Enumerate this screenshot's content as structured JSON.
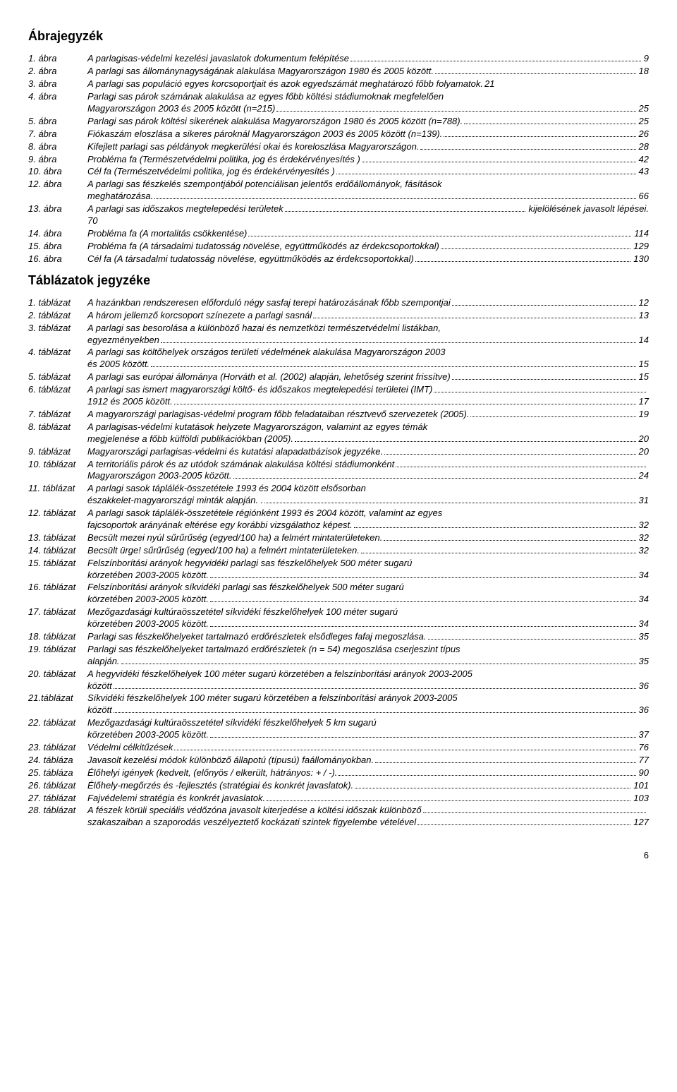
{
  "sections": [
    {
      "title": "Ábrajegyzék",
      "entries": [
        {
          "label": "1. ábra",
          "lines": [
            {
              "text": "A parlagisas-védelmi kezelési javaslatok dokumentum felépítése",
              "page": "9"
            }
          ]
        },
        {
          "label": "2. ábra",
          "lines": [
            {
              "text": "A parlagi sas állománynagyságának alakulása Magyarországon 1980 és 2005 között.",
              "page": "18"
            }
          ]
        },
        {
          "label": "3. ábra",
          "lines": [
            {
              "text": "A parlagi sas populáció egyes korcsoportjait és azok egyedszámát meghatározó főbb folyamatok.",
              "page": "21",
              "nodots": true
            }
          ]
        },
        {
          "label": "4. ábra",
          "lines": [
            {
              "text": "Parlagi sas párok számának alakulása az egyes főbb költési stádiumoknak megfelelően"
            },
            {
              "text": "Magyarországon 2003 és 2005 között (n=215)",
              "page": "25"
            }
          ]
        },
        {
          "label": "5. ábra",
          "lines": [
            {
              "text": "Parlagi sas párok költési sikerének alakulása Magyarországon 1980 és 2005 között (n=788).",
              "page": "25"
            }
          ]
        },
        {
          "label": "7. ábra",
          "lines": [
            {
              "text": "Fiókaszám eloszlása a sikeres pároknál Magyarországon 2003 és 2005 között (n=139).",
              "page": "26"
            }
          ]
        },
        {
          "label": "8. ábra",
          "lines": [
            {
              "text": "Kifejlett parlagi sas példányok megkerülési okai és koreloszlása Magyarországon.",
              "page": "28"
            }
          ]
        },
        {
          "label": "9. ábra",
          "lines": [
            {
              "text": "Probléma fa (Természetvédelmi politika, jog és érdekérvényesítés )",
              "page": "42"
            }
          ]
        },
        {
          "label": "10. ábra",
          "lines": [
            {
              "text": "Cél fa (Természetvédelmi politika, jog és érdekérvényesítés )",
              "page": "43"
            }
          ]
        },
        {
          "label": "12. ábra",
          "lines": [
            {
              "text": "A parlagi sas fészkelés szempontjából potenciálisan jelentős erdőállományok, fásítások"
            },
            {
              "text": "meghatározása.",
              "page": "66"
            }
          ]
        },
        {
          "label": "13. ábra",
          "lines": [
            {
              "text": "A parlagi sas időszakos megtelepedési területek",
              "page": "kijelölésének javasolt lépései."
            },
            {
              "text": "70",
              "nodots": true
            }
          ]
        },
        {
          "label": "14. ábra",
          "lines": [
            {
              "text": "Probléma fa (A mortalitás csökkentése)",
              "page": "114"
            }
          ]
        },
        {
          "label": "15. ábra",
          "lines": [
            {
              "text": "Probléma fa (A társadalmi tudatosság növelése, együttműködés az érdekcsoportokkal)",
              "page": "129"
            }
          ]
        },
        {
          "label": "16. ábra",
          "lines": [
            {
              "text": "Cél fa (A társadalmi tudatosság növelése, együttműködés az érdekcsoportokkal)",
              "page": "130"
            }
          ]
        }
      ]
    },
    {
      "title": "Táblázatok jegyzéke",
      "entries": [
        {
          "label": "1. táblázat",
          "lines": [
            {
              "text": "A hazánkban rendszeresen előforduló négy sasfaj terepi határozásának főbb szempontjai",
              "page": "12"
            }
          ]
        },
        {
          "label": "2. táblázat",
          "lines": [
            {
              "text": "A három jellemző korcsoport színezete a parlagi sasnál",
              "page": "13"
            }
          ]
        },
        {
          "label": "3. táblázat",
          "lines": [
            {
              "text": "A parlagi sas besorolása a különböző hazai és nemzetközi természetvédelmi listákban,"
            },
            {
              "text": "egyezményekben",
              "page": "14"
            }
          ]
        },
        {
          "label": "4. táblázat",
          "lines": [
            {
              "text": "A parlagi sas költőhelyek országos területi védelmének alakulása Magyarországon 2003"
            },
            {
              "text": "és 2005 között.",
              "page": "15"
            }
          ]
        },
        {
          "label": "5. táblázat",
          "lines": [
            {
              "text": "A parlagi sas európai állománya (Horváth et al. (2002) alapján, lehetőség szerint frissítve)",
              "page": "15"
            }
          ]
        },
        {
          "label": "6. táblázat",
          "lines": [
            {
              "text": "A parlagi sas ismert magyarországi költő- és időszakos megtelepedési területei (IMT)",
              "page": ""
            },
            {
              "text": "1912 és 2005 között.",
              "page": "17"
            }
          ]
        },
        {
          "label": "7. táblázat",
          "lines": [
            {
              "text": "A magyarországi parlagisas-védelmi program főbb feladataiban résztvevő szervezetek (2005).",
              "page": "19"
            }
          ]
        },
        {
          "label": "8. táblázat",
          "lines": [
            {
              "text": "A parlagisas-védelmi kutatások helyzete Magyarországon, valamint az egyes témák"
            },
            {
              "text": "megjelenése a főbb külföldi publikációkban (2005).",
              "page": "20"
            }
          ]
        },
        {
          "label": "9. táblázat",
          "lines": [
            {
              "text": "Magyarországi parlagisas-védelmi és kutatási alapadatbázisok jegyzéke.",
              "page": "20"
            }
          ]
        },
        {
          "label": "10. táblázat",
          "lines": [
            {
              "text": "A territoriális párok és az utódok számának alakulása költési stádiumonként",
              "page": ""
            },
            {
              "text": "Magyarországon 2003-2005 között.",
              "page": "24"
            }
          ]
        },
        {
          "label": "11. táblázat",
          "lines": [
            {
              "text": "A parlagi sasok táplálék-összetétele 1993 és 2004 között elsősorban"
            },
            {
              "text": "északkelet-magyarországi minták alapján. .",
              "page": "31"
            }
          ]
        },
        {
          "label": "12. táblázat",
          "lines": [
            {
              "text": "A parlagi sasok táplálék-összetétele régiónként 1993 és 2004 között, valamint az egyes"
            },
            {
              "text": "fajcsoportok arányának eltérése egy korábbi vizsgálathoz képest.",
              "page": "32"
            }
          ]
        },
        {
          "label": "13. táblázat",
          "lines": [
            {
              "text": "Becsült mezei nyúl sűrűrűség (egyed/100 ha) a felmért mintaterületeken.",
              "page": "32"
            }
          ]
        },
        {
          "label": "14. táblázat",
          "lines": [
            {
              "text": "Becsült ürge! sűrűrűség (egyed/100 ha) a felmért mintaterületeken.",
              "page": "32"
            }
          ]
        },
        {
          "label": "15. táblázat",
          "lines": [
            {
              "text": "Felszínborítási arányok hegyvidéki parlagi sas fészkelőhelyek 500 méter sugarú"
            },
            {
              "text": "körzetében 2003-2005 között.",
              "page": "34"
            }
          ]
        },
        {
          "label": "16. táblázat",
          "lines": [
            {
              "text": "Felszínborítási arányok síkvidéki parlagi sas fészkelőhelyek 500 méter sugarú"
            },
            {
              "text": "körzetében 2003-2005 között.",
              "page": "34"
            }
          ]
        },
        {
          "label": "17. táblázat",
          "lines": [
            {
              "text": "Mezőgazdasági kultúraösszetétel síkvidéki fészkelőhelyek 100 méter sugarú"
            },
            {
              "text": "körzetében 2003-2005 között.",
              "page": "34"
            }
          ]
        },
        {
          "label": "18. táblázat",
          "lines": [
            {
              "text": "Parlagi sas fészkelőhelyeket tartalmazó erdőrészletek elsődleges fafaj megoszlása.",
              "page": "35"
            }
          ]
        },
        {
          "label": "19. táblázat",
          "lines": [
            {
              "text": "Parlagi sas fészkelőhelyeket tartalmazó erdőrészletek (n = 54) megoszlása cserjeszint típus"
            },
            {
              "text": "alapján.",
              "page": "35"
            }
          ]
        },
        {
          "label": "20. táblázat",
          "lines": [
            {
              "text": "A hegyvidéki fészkelőhelyek 100 méter sugarú körzetében a felszínborítási arányok 2003-2005"
            },
            {
              "text": "között",
              "page": "36"
            }
          ]
        },
        {
          "label": "21.táblázat",
          "lines": [
            {
              "text": "Síkvidéki fészkelőhelyek 100 méter sugarú körzetében a felszínborítási arányok 2003-2005"
            },
            {
              "text": "között",
              "page": "36"
            }
          ]
        },
        {
          "label": "22. táblázat",
          "lines": [
            {
              "text": "Mezőgazdasági kultúraösszetétel síkvidéki fészkelőhelyek 5 km sugarú"
            },
            {
              "text": "körzetében 2003-2005 között.",
              "page": "37"
            }
          ]
        },
        {
          "label": "23. táblázat",
          "lines": [
            {
              "text": "Védelmi célkitűzések",
              "page": "76"
            }
          ]
        },
        {
          "label": "24. tábláza",
          "lines": [
            {
              "text": "Javasolt kezelési módok különböző állapotú (típusú) faállományokban.",
              "page": "77"
            }
          ]
        },
        {
          "label": "25. tábláza",
          "lines": [
            {
              "text": "Élőhelyi igények (kedvelt, (előnyös / elkerült, hátrányos: + / -).",
              "page": "90"
            }
          ]
        },
        {
          "label": "26. táblázat",
          "lines": [
            {
              "text": "Élőhely-megőrzés és -fejlesztés (stratégiai és konkrét javaslatok).",
              "page": "101"
            }
          ]
        },
        {
          "label": "27. táblázat",
          "lines": [
            {
              "text": "Fajvédelemi stratégia és konkrét javaslatok.",
              "page": "103"
            }
          ]
        },
        {
          "label": "28. táblázat",
          "lines": [
            {
              "text": "A fészek körüli speciális védőzóna javasolt kiterjedése a költési időszak különböző",
              "page": ""
            },
            {
              "text": "szakaszaiban a szaporodás veszélyeztető kockázati szintek figyelembe vételével",
              "page": "127"
            }
          ]
        }
      ]
    }
  ],
  "pageNumber": "6"
}
